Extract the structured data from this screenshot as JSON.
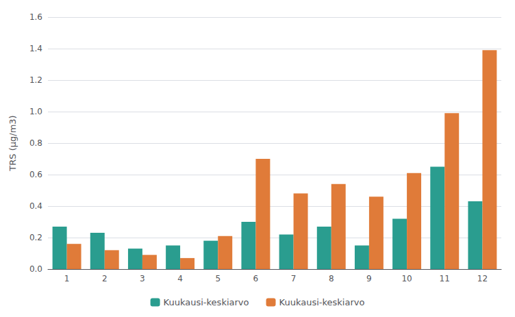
{
  "chart_data": {
    "type": "bar",
    "categories": [
      1,
      2,
      3,
      4,
      5,
      6,
      7,
      8,
      9,
      10,
      11,
      12
    ],
    "series": [
      {
        "name": "Kuukausi-keskiarvo",
        "color": "#2a9d8f",
        "values": [
          0.27,
          0.23,
          0.13,
          0.15,
          0.18,
          0.3,
          0.22,
          0.27,
          0.15,
          0.32,
          0.65,
          0.43
        ]
      },
      {
        "name": "Kuukausi-keskiarvo",
        "color": "#e07b39",
        "values": [
          0.16,
          0.12,
          0.09,
          0.07,
          0.21,
          0.7,
          0.48,
          0.54,
          0.46,
          0.61,
          0.99,
          1.39
        ]
      }
    ],
    "ylabel": "TRS (μg/m3)",
    "ylim": [
      0.0,
      1.6
    ],
    "yticks": [
      {
        "value": 0.0,
        "label": "0.0"
      },
      {
        "value": 0.2,
        "label": "0.2"
      },
      {
        "value": 0.4,
        "label": "0.4"
      },
      {
        "value": 0.6,
        "label": "0.6"
      },
      {
        "value": 0.8,
        "label": "0.8"
      },
      {
        "value": 1.0,
        "label": "1.0"
      },
      {
        "value": 1.2,
        "label": "1.2"
      },
      {
        "value": 1.4,
        "label": "1.4"
      },
      {
        "value": 1.6,
        "label": "1.6"
      }
    ],
    "grid": true,
    "legend": "bottom"
  }
}
